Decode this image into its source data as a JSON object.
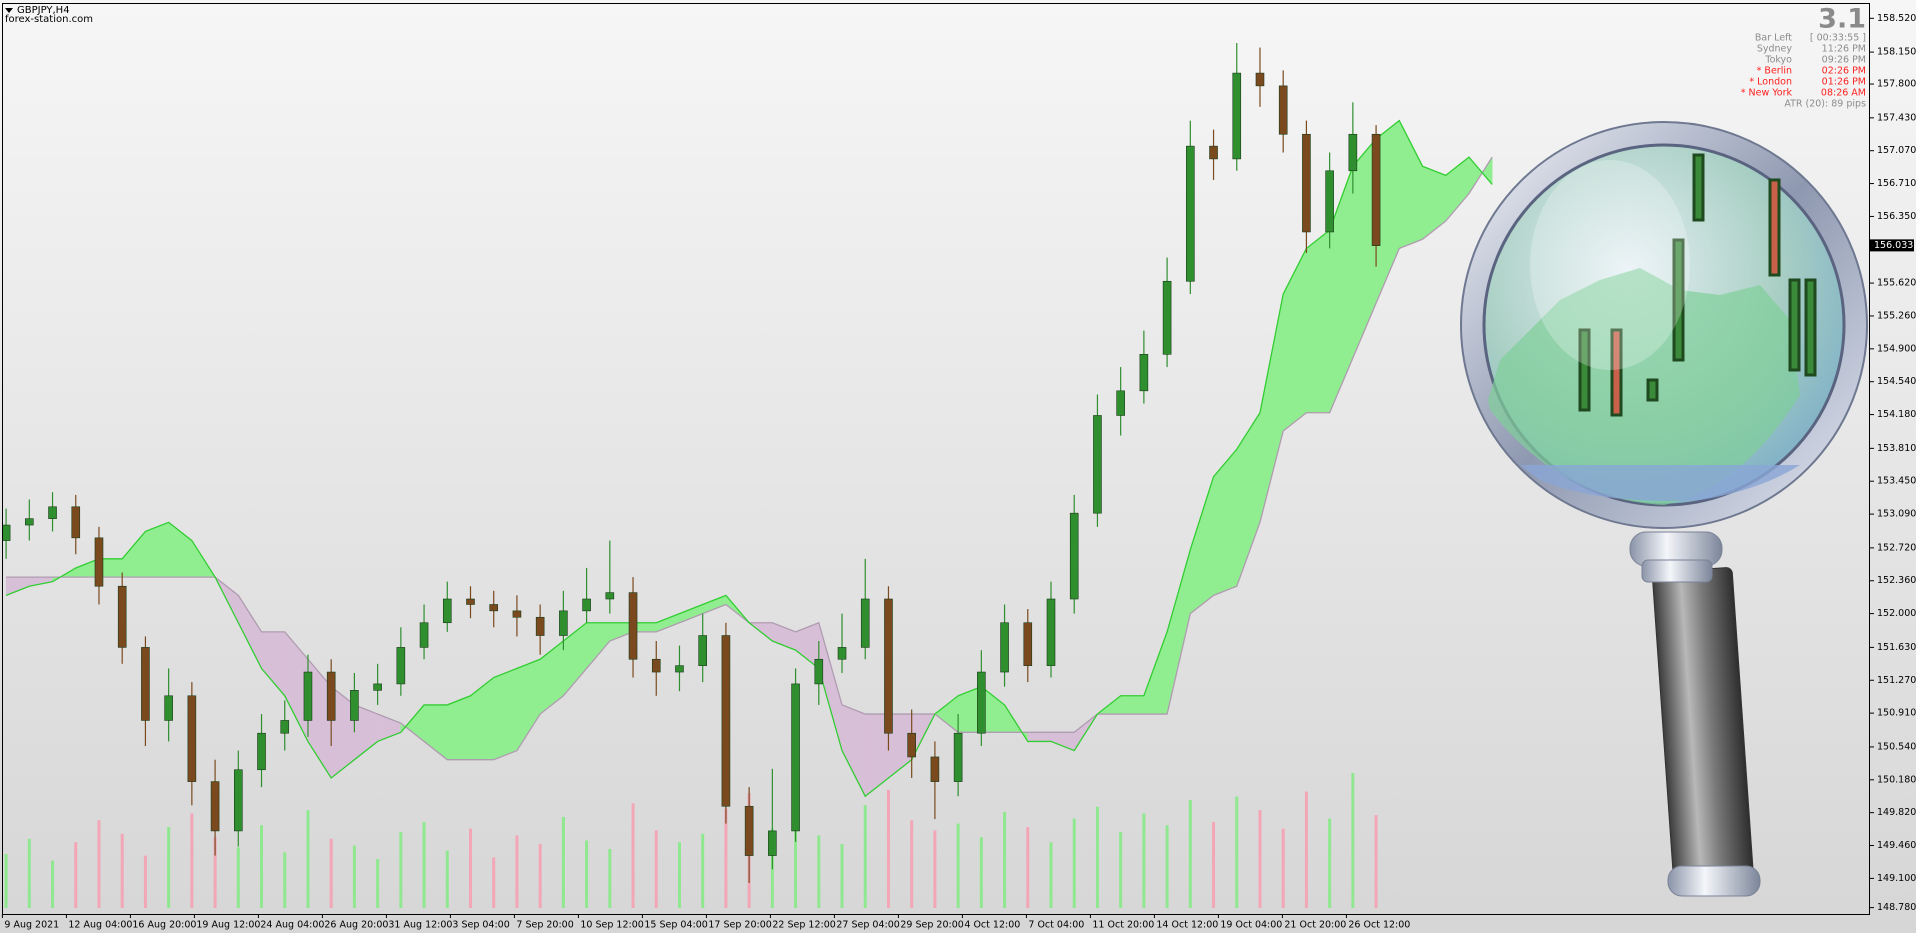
{
  "header": {
    "symbol": "GBPJPY,H4",
    "site": "forex-station.com"
  },
  "info_panel": {
    "version": "3.1",
    "rows": [
      {
        "label": "Bar Left",
        "value": "[ 00:33:55 ]",
        "color": "#8c8c8c"
      },
      {
        "label": "Sydney",
        "value": "11:26 PM",
        "color": "#8c8c8c"
      },
      {
        "label": "Tokyo",
        "value": "09:26 PM",
        "color": "#8c8c8c"
      },
      {
        "label": "* Berlin",
        "value": "02:26 PM",
        "color": "#ff2020"
      },
      {
        "label": "* London",
        "value": "01:26 PM",
        "color": "#ff2020"
      },
      {
        "label": "* New York",
        "value": "08:26 AM",
        "color": "#ff2020"
      }
    ],
    "atr": "ATR (20): 89 pips"
  },
  "chart_data": {
    "type": "candlestick",
    "x_labels": [
      "9 Aug 2021",
      "12 Aug 04:00",
      "16 Aug 20:00",
      "19 Aug 12:00",
      "24 Aug 04:00",
      "26 Aug 20:00",
      "31 Aug 12:00",
      "3 Sep 04:00",
      "7 Sep 20:00",
      "10 Sep 12:00",
      "15 Sep 04:00",
      "17 Sep 20:00",
      "22 Sep 12:00",
      "27 Sep 04:00",
      "29 Sep 20:00",
      "4 Oct 12:00",
      "7 Oct 04:00",
      "11 Oct 20:00",
      "14 Oct 12:00",
      "19 Oct 04:00",
      "21 Oct 20:00",
      "26 Oct 12:00"
    ],
    "open": [
      152.8,
      152.97,
      153.04,
      153.17,
      152.83,
      152.3,
      151.63,
      150.83,
      151.1,
      150.16,
      149.62,
      150.29,
      150.69,
      150.83,
      151.36,
      150.83,
      151.16,
      151.23,
      151.63,
      151.9,
      152.16,
      152.1,
      152.03,
      151.96,
      151.76,
      152.03,
      152.16,
      152.23,
      151.5,
      151.36,
      151.43,
      151.76,
      149.89,
      149.35,
      149.62,
      151.23,
      151.5,
      151.63,
      152.16,
      150.69,
      150.43,
      150.16,
      150.69,
      151.36,
      151.9,
      151.43,
      152.16,
      153.1,
      154.17,
      154.44,
      154.84,
      155.64,
      157.12,
      156.98,
      157.92,
      157.78,
      157.25,
      156.18,
      156.85,
      157.25
    ],
    "high": [
      153.15,
      153.25,
      153.33,
      153.3,
      152.95,
      152.45,
      151.75,
      151.4,
      151.25,
      150.4,
      150.5,
      150.9,
      151.05,
      151.55,
      151.5,
      151.35,
      151.45,
      151.85,
      152.1,
      152.35,
      152.3,
      152.25,
      152.2,
      152.1,
      152.25,
      152.5,
      152.8,
      152.4,
      151.7,
      151.65,
      152.0,
      151.9,
      150.1,
      150.3,
      151.4,
      151.7,
      152.0,
      152.6,
      152.3,
      150.95,
      150.6,
      150.9,
      151.6,
      152.1,
      152.05,
      152.35,
      153.3,
      154.4,
      154.7,
      155.1,
      155.9,
      157.4,
      157.3,
      158.25,
      158.2,
      157.95,
      157.4,
      157.05,
      157.6,
      157.35
    ],
    "low": [
      152.6,
      152.8,
      152.9,
      152.65,
      152.1,
      151.45,
      150.55,
      150.6,
      149.9,
      149.35,
      149.45,
      150.1,
      150.5,
      150.65,
      150.55,
      150.7,
      151.0,
      151.1,
      151.5,
      151.8,
      151.95,
      151.85,
      151.75,
      151.55,
      151.6,
      151.9,
      152.0,
      151.3,
      151.1,
      151.15,
      151.25,
      149.7,
      149.05,
      149.2,
      149.5,
      151.0,
      151.35,
      151.5,
      150.5,
      150.2,
      149.75,
      150.0,
      150.55,
      151.2,
      151.25,
      151.3,
      152.0,
      152.95,
      153.95,
      154.3,
      154.7,
      155.5,
      156.75,
      156.85,
      157.55,
      157.05,
      155.95,
      156.0,
      156.6,
      155.8
    ],
    "close": [
      152.97,
      153.04,
      153.17,
      152.83,
      152.3,
      151.63,
      150.83,
      151.1,
      150.16,
      149.62,
      150.29,
      150.69,
      150.83,
      151.36,
      150.83,
      151.16,
      151.23,
      151.63,
      151.9,
      152.16,
      152.1,
      152.03,
      151.96,
      151.76,
      152.03,
      152.16,
      152.23,
      151.5,
      151.36,
      151.43,
      151.76,
      149.89,
      149.35,
      149.62,
      151.23,
      151.5,
      151.63,
      152.16,
      150.69,
      150.43,
      150.16,
      150.69,
      151.36,
      151.9,
      151.43,
      152.16,
      153.1,
      154.17,
      154.44,
      154.84,
      155.64,
      157.12,
      156.98,
      157.92,
      157.78,
      157.25,
      156.18,
      156.85,
      157.25,
      156.03
    ],
    "volume": [
      3200,
      4100,
      2800,
      3900,
      5200,
      4400,
      3100,
      4800,
      5600,
      4200,
      3600,
      4900,
      3300,
      5800,
      4100,
      3700,
      2900,
      4500,
      5100,
      3400,
      4700,
      3000,
      4300,
      3800,
      5400,
      4000,
      3500,
      6200,
      4600,
      3900,
      4400,
      5900,
      6800,
      4700,
      5500,
      4300,
      3800,
      6100,
      7000,
      5200,
      4600,
      5000,
      4200,
      5700,
      4800,
      3900,
      5300,
      6000,
      4500,
      5600,
      4900,
      6400,
      5100,
      6600,
      5800,
      4700,
      6900,
      5300,
      8000,
      5500
    ],
    "span_a": [
      152.2,
      152.3,
      152.35,
      152.5,
      152.6,
      152.6,
      152.9,
      153.0,
      152.8,
      152.4,
      151.9,
      151.4,
      151.1,
      150.6,
      150.2,
      150.4,
      150.6,
      150.7,
      151.0,
      151.0,
      151.1,
      151.3,
      151.4,
      151.5,
      151.7,
      151.9,
      151.9,
      151.9,
      151.9,
      152.0,
      152.1,
      152.2,
      151.9,
      151.7,
      151.6,
      151.4,
      150.5,
      150.0,
      150.2,
      150.4,
      150.9,
      151.1,
      151.2,
      151.0,
      150.6,
      150.6,
      150.5,
      150.9,
      151.1,
      151.1,
      151.8,
      152.7,
      153.5,
      153.8,
      154.2,
      155.5,
      156.0,
      156.2,
      156.9,
      157.2,
      157.4,
      156.9,
      156.8,
      157.0,
      156.7
    ],
    "span_b": [
      152.4,
      152.4,
      152.4,
      152.4,
      152.4,
      152.4,
      152.4,
      152.4,
      152.4,
      152.4,
      152.2,
      151.8,
      151.8,
      151.5,
      151.2,
      151.0,
      150.9,
      150.8,
      150.6,
      150.4,
      150.4,
      150.4,
      150.5,
      150.9,
      151.1,
      151.4,
      151.7,
      151.8,
      151.8,
      151.9,
      152.0,
      152.1,
      151.9,
      151.9,
      151.8,
      151.9,
      151.0,
      150.9,
      150.9,
      150.9,
      150.9,
      150.7,
      150.7,
      150.7,
      150.7,
      150.7,
      150.7,
      150.9,
      150.9,
      150.9,
      150.9,
      152.0,
      152.2,
      152.3,
      153.0,
      154.0,
      154.2,
      154.2,
      154.8,
      155.4,
      156.0,
      156.1,
      156.3,
      156.6,
      157.0
    ],
    "up_color": "#2f8f2f",
    "down_color": "#7a4a1e",
    "volume_up_color": "#8fe88f",
    "volume_down_color": "#f3a6b6",
    "cloud_up_color": "#90ee90",
    "cloud_down_color": "#d8bfd8",
    "span_a_color": "#32cd32",
    "span_b_color": "#b09cb0",
    "bid": 156.033,
    "ylim": [
      148.71,
      158.68
    ],
    "yticks": [
      {
        "value": 158.52,
        "label": "158.520"
      },
      {
        "value": 158.15,
        "label": "158.150"
      },
      {
        "value": 157.8,
        "label": "157.800"
      },
      {
        "value": 157.43,
        "label": "157.430"
      },
      {
        "value": 157.07,
        "label": "157.070"
      },
      {
        "value": 156.71,
        "label": "156.710"
      },
      {
        "value": 156.35,
        "label": "156.350"
      },
      {
        "value": 155.62,
        "label": "155.620"
      },
      {
        "value": 155.26,
        "label": "155.260"
      },
      {
        "value": 154.9,
        "label": "154.900"
      },
      {
        "value": 154.54,
        "label": "154.540"
      },
      {
        "value": 154.18,
        "label": "154.180"
      },
      {
        "value": 153.81,
        "label": "153.810"
      },
      {
        "value": 153.45,
        "label": "153.450"
      },
      {
        "value": 153.09,
        "label": "153.090"
      },
      {
        "value": 152.72,
        "label": "152.720"
      },
      {
        "value": 152.36,
        "label": "152.360"
      },
      {
        "value": 152.0,
        "label": "152.000"
      },
      {
        "value": 151.63,
        "label": "151.630"
      },
      {
        "value": 151.27,
        "label": "151.270"
      },
      {
        "value": 150.91,
        "label": "150.910"
      },
      {
        "value": 150.54,
        "label": "150.540"
      },
      {
        "value": 150.18,
        "label": "150.180"
      },
      {
        "value": 149.82,
        "label": "149.820"
      },
      {
        "value": 149.46,
        "label": "149.460"
      },
      {
        "value": 149.1,
        "label": "149.100"
      },
      {
        "value": 148.78,
        "label": "148.780"
      }
    ]
  }
}
